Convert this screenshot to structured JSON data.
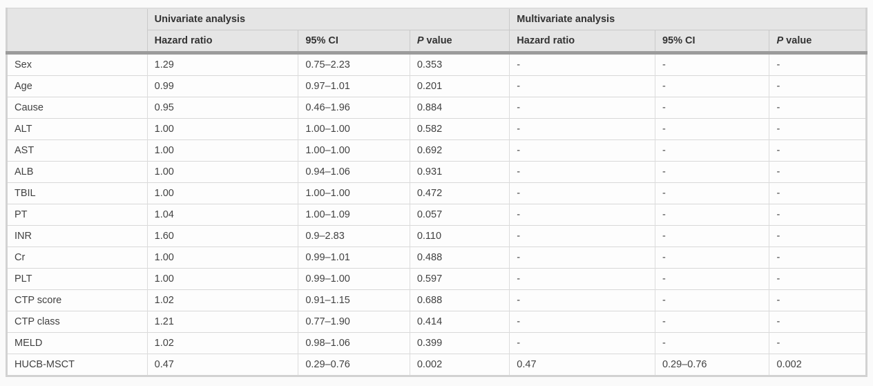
{
  "table": {
    "group_headers": {
      "empty": "",
      "univariate": "Univariate analysis",
      "multivariate": "Multivariate analysis"
    },
    "column_headers": {
      "hazard_ratio": "Hazard ratio",
      "ci": "95% CI",
      "p_italic": "P",
      "p_rest": " value"
    },
    "rows": [
      {
        "label": "Sex",
        "uni_hr": "1.29",
        "uni_ci": "0.75–2.23",
        "uni_p": "0.353",
        "multi_hr": "-",
        "multi_ci": "-",
        "multi_p": "-"
      },
      {
        "label": "Age",
        "uni_hr": "0.99",
        "uni_ci": "0.97–1.01",
        "uni_p": "0.201",
        "multi_hr": "-",
        "multi_ci": "-",
        "multi_p": "-"
      },
      {
        "label": "Cause",
        "uni_hr": "0.95",
        "uni_ci": "0.46–1.96",
        "uni_p": "0.884",
        "multi_hr": "-",
        "multi_ci": "-",
        "multi_p": "-"
      },
      {
        "label": "ALT",
        "uni_hr": "1.00",
        "uni_ci": "1.00–1.00",
        "uni_p": "0.582",
        "multi_hr": "-",
        "multi_ci": "-",
        "multi_p": "-"
      },
      {
        "label": "AST",
        "uni_hr": "1.00",
        "uni_ci": "1.00–1.00",
        "uni_p": "0.692",
        "multi_hr": "-",
        "multi_ci": "-",
        "multi_p": "-"
      },
      {
        "label": "ALB",
        "uni_hr": "1.00",
        "uni_ci": "0.94–1.06",
        "uni_p": "0.931",
        "multi_hr": "-",
        "multi_ci": "-",
        "multi_p": "-"
      },
      {
        "label": "TBIL",
        "uni_hr": "1.00",
        "uni_ci": "1.00–1.00",
        "uni_p": "0.472",
        "multi_hr": "-",
        "multi_ci": "-",
        "multi_p": "-"
      },
      {
        "label": "PT",
        "uni_hr": "1.04",
        "uni_ci": "1.00–1.09",
        "uni_p": "0.057",
        "multi_hr": "-",
        "multi_ci": "-",
        "multi_p": "-"
      },
      {
        "label": "INR",
        "uni_hr": "1.60",
        "uni_ci": "0.9–2.83",
        "uni_p": "0.110",
        "multi_hr": "-",
        "multi_ci": "-",
        "multi_p": "-"
      },
      {
        "label": "Cr",
        "uni_hr": "1.00",
        "uni_ci": "0.99–1.01",
        "uni_p": "0.488",
        "multi_hr": "-",
        "multi_ci": "-",
        "multi_p": "-"
      },
      {
        "label": "PLT",
        "uni_hr": "1.00",
        "uni_ci": "0.99–1.00",
        "uni_p": "0.597",
        "multi_hr": "-",
        "multi_ci": "-",
        "multi_p": "-"
      },
      {
        "label": "CTP score",
        "uni_hr": "1.02",
        "uni_ci": "0.91–1.15",
        "uni_p": "0.688",
        "multi_hr": "-",
        "multi_ci": "-",
        "multi_p": "-"
      },
      {
        "label": "CTP class",
        "uni_hr": "1.21",
        "uni_ci": "0.77–1.90",
        "uni_p": "0.414",
        "multi_hr": "-",
        "multi_ci": "-",
        "multi_p": "-"
      },
      {
        "label": "MELD",
        "uni_hr": "1.02",
        "uni_ci": "0.98–1.06",
        "uni_p": "0.399",
        "multi_hr": "-",
        "multi_ci": "-",
        "multi_p": "-"
      },
      {
        "label": "HUCB-MSCT",
        "uni_hr": "0.47",
        "uni_ci": "0.29–0.76",
        "uni_p": "0.002",
        "multi_hr": "0.47",
        "multi_ci": "0.29–0.76",
        "multi_p": "0.002"
      }
    ],
    "colors": {
      "header_background": "#e5e5e5",
      "header_separator_bar": "#9b9b9b",
      "outer_border": "#d2d2d2",
      "inner_border": "#dcdcdc",
      "body_text": "#414141",
      "header_text": "#333333"
    }
  }
}
